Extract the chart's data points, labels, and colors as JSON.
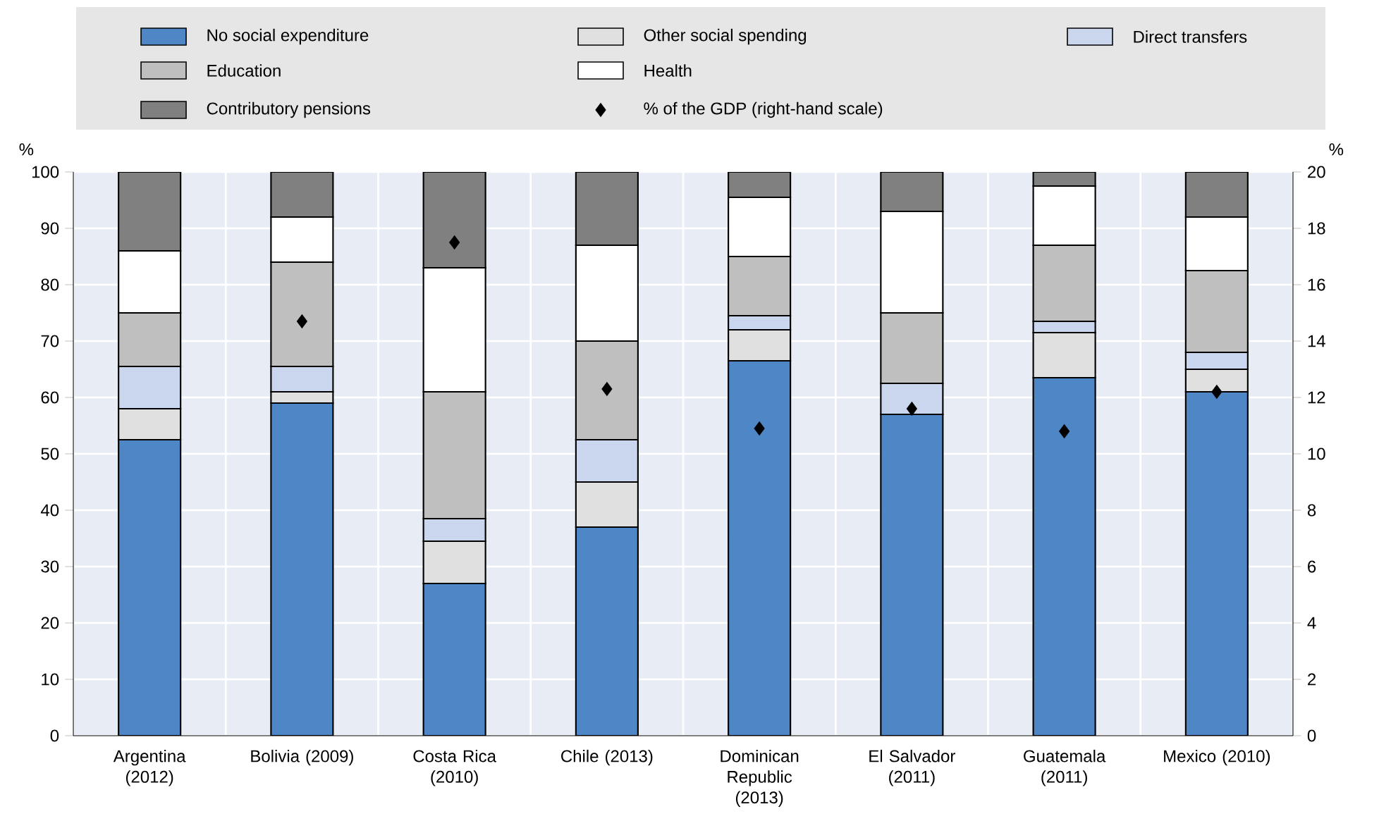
{
  "chart_data": {
    "type": "bar",
    "stacked": true,
    "ylabel": "%",
    "y2label": "%",
    "categories": [
      "Argentina (2012)",
      "Bolivia (2009)",
      "Costa Rica (2010)",
      "Chile (2013)",
      "Dominican Republic (2013)",
      "El Salvador (2011)",
      "Guatemala (2011)",
      "Mexico (2010)"
    ],
    "series": [
      {
        "name": "No social expenditure",
        "color": "#4e86c6",
        "values": [
          52.5,
          59,
          27,
          37,
          66.5,
          57,
          63.5,
          61
        ]
      },
      {
        "name": "Other social spending",
        "color": "#e0e0e0",
        "values": [
          5.5,
          2,
          7.5,
          8,
          5.5,
          0,
          8,
          4
        ]
      },
      {
        "name": "Direct transfers",
        "color": "#c9d6ee",
        "values": [
          7.5,
          4.5,
          4,
          7.5,
          2.5,
          5.5,
          2,
          3
        ]
      },
      {
        "name": "Education",
        "color": "#bfbfbf",
        "values": [
          9.5,
          18.5,
          22.5,
          17.5,
          10.5,
          12.5,
          13.5,
          14.5
        ]
      },
      {
        "name": "Health",
        "color": "#ffffff",
        "values": [
          11,
          8,
          22,
          17,
          10.5,
          18,
          10.5,
          9.5
        ]
      },
      {
        "name": "Contributory pensions",
        "color": "#808080",
        "values": [
          14,
          8,
          17,
          13,
          4.5,
          7,
          2.5,
          8
        ]
      },
      {
        "name": "% of the GDP (right-hand scale)",
        "type": "scatter",
        "axis": "y2",
        "marker": "diamond",
        "color": "#000000",
        "values": [
          null,
          14.7,
          17.5,
          12.3,
          10.9,
          11.6,
          10.8,
          12.2
        ]
      }
    ],
    "ylim": [
      0,
      100
    ],
    "yticks": [
      0,
      10,
      20,
      30,
      40,
      50,
      60,
      70,
      80,
      90,
      100
    ],
    "y2lim": [
      0,
      20
    ],
    "y2ticks": [
      0,
      2,
      4,
      6,
      8,
      10,
      12,
      14,
      16,
      18,
      20
    ],
    "grid": true,
    "legend": "top"
  }
}
